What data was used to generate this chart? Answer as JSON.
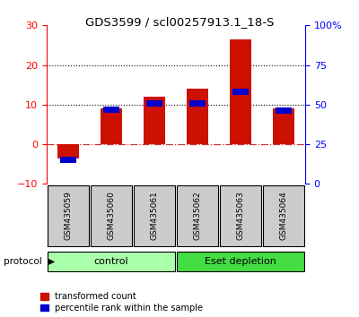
{
  "title": "GDS3599 / scl00257913.1_18-S",
  "samples": [
    "GSM435059",
    "GSM435060",
    "GSM435061",
    "GSM435062",
    "GSM435063",
    "GSM435064"
  ],
  "red_values": [
    -3.5,
    9.0,
    12.0,
    14.0,
    26.5,
    9.0
  ],
  "blue_values_pct": [
    15.0,
    47.0,
    51.0,
    51.0,
    58.0,
    46.0
  ],
  "ylim_left": [
    -10,
    30
  ],
  "ylim_right": [
    0,
    100
  ],
  "yticks_left": [
    -10,
    0,
    10,
    20,
    30
  ],
  "ytick_labels_right": [
    "0",
    "25",
    "50",
    "75",
    "100%"
  ],
  "yticks_right": [
    0,
    25,
    50,
    75,
    100
  ],
  "hlines": [
    10,
    20
  ],
  "zero_line_color": "#cc3333",
  "hline_color": "black",
  "bar_width": 0.5,
  "red_color": "#cc1100",
  "blue_color": "#0000cc",
  "control_label": "control",
  "eset_label": "Eset depletion",
  "protocol_label": "protocol",
  "legend_red": "transformed count",
  "legend_blue": "percentile rank within the sample",
  "control_color": "#aaffaa",
  "eset_color": "#44dd44",
  "sample_bg": "#cccccc"
}
